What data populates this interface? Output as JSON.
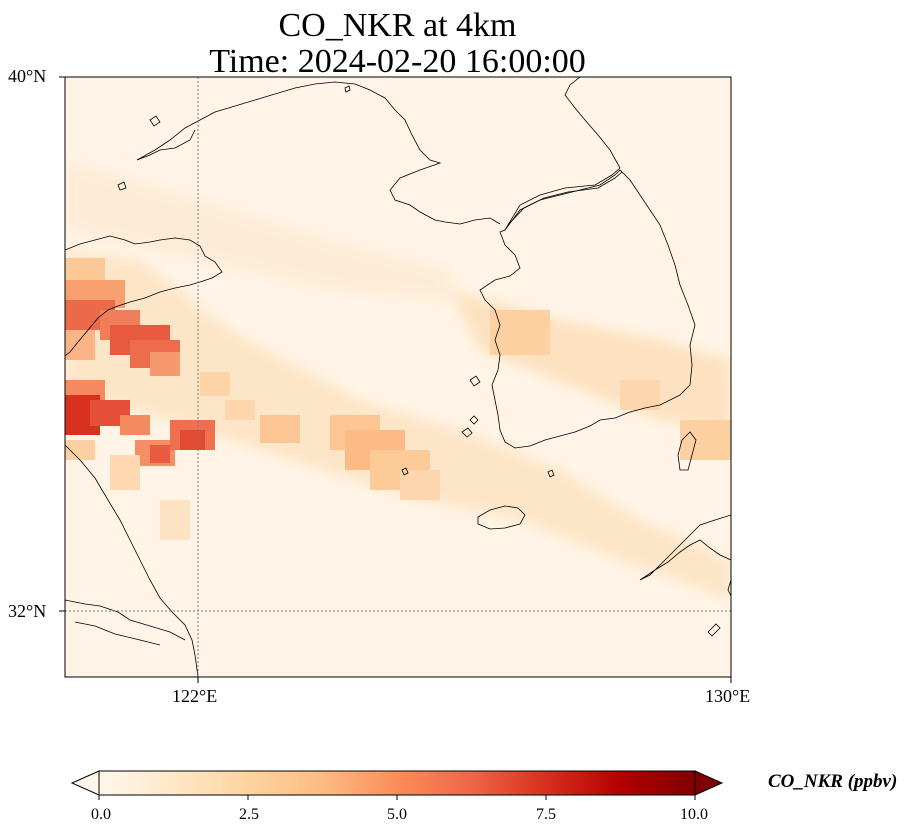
{
  "title": {
    "line1": "CO_NKR at 4km",
    "line2": "Time: 2024-02-20 16:00:00"
  },
  "map": {
    "lat_labels": [
      "40°N",
      "32°N"
    ],
    "lon_labels": [
      "122°E",
      "130°E"
    ],
    "extent": {
      "lon": [
        120,
        130
      ],
      "lat": [
        31,
        40
      ]
    },
    "gridlines": {
      "lon": [
        122
      ],
      "lat": [
        32
      ],
      "style": "dotted"
    }
  },
  "colorbar": {
    "label": "CO_NKR (ppbv)",
    "ticks": [
      "0.0",
      "2.5",
      "5.0",
      "7.5",
      "10.0"
    ],
    "range": [
      0,
      10
    ],
    "colormap": "OrRd",
    "stops": [
      "#fff7ec",
      "#fee8c8",
      "#fdd49e",
      "#fdbb84",
      "#fc8d59",
      "#ef6548",
      "#d7301f",
      "#b30000",
      "#7f0000"
    ],
    "extend": "both"
  }
}
